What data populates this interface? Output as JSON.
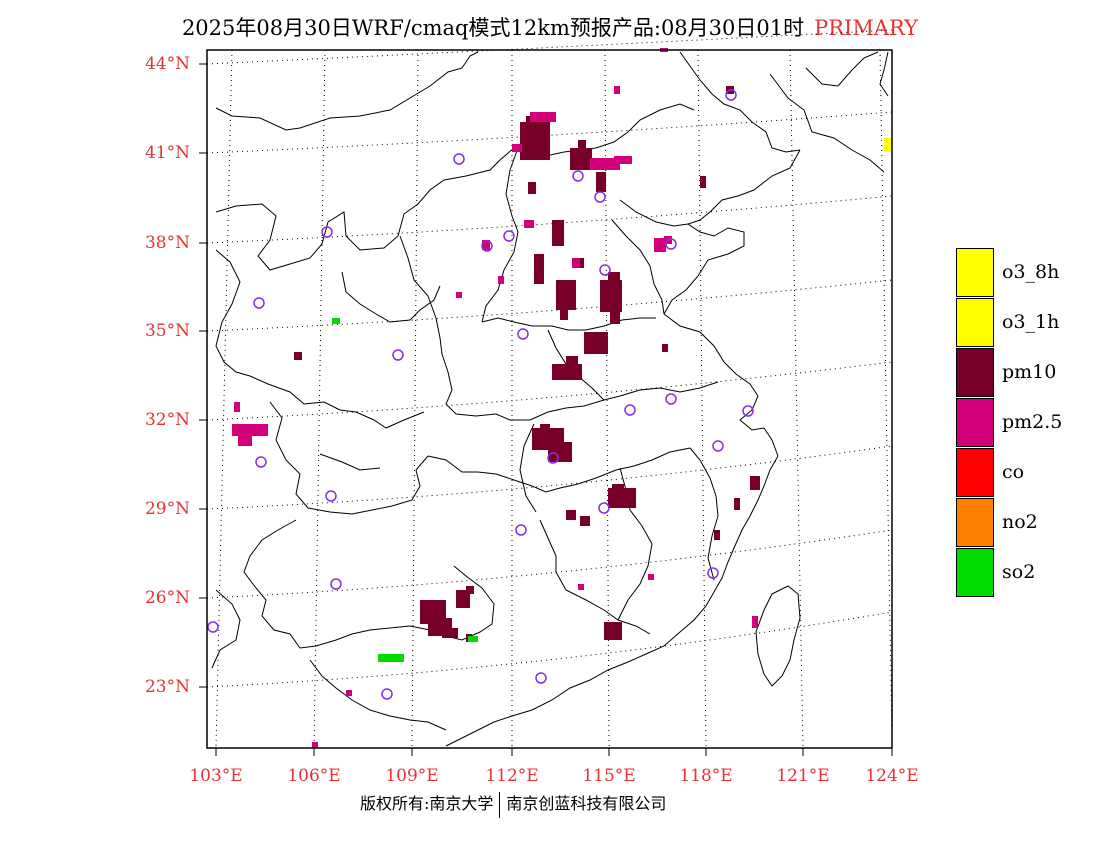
{
  "title": {
    "main": "2025年08月30日WRF/cmaq模式12km预报产品:08月30日01时",
    "tag": "PRIMARY"
  },
  "colors": {
    "frame": "#000000",
    "label": "#e63232",
    "pm10": "#780028",
    "pm25": "#d2007a",
    "so2": "#00dc00",
    "o3": "#ffff00",
    "station": "#8a2be2"
  },
  "lat_labels": [
    "44°N",
    "41°N",
    "38°N",
    "35°N",
    "32°N",
    "29°N",
    "26°N",
    "23°N"
  ],
  "lon_labels": [
    "103°E",
    "106°E",
    "109°E",
    "112°E",
    "115°E",
    "118°E",
    "121°E",
    "124°E"
  ],
  "legend": [
    {
      "label": "o3_8h",
      "color": "#ffff00"
    },
    {
      "label": "o3_1h",
      "color": "#ffff00"
    },
    {
      "label": "pm10",
      "color": "#780028"
    },
    {
      "label": "pm2.5",
      "color": "#d2007a"
    },
    {
      "label": "co",
      "color": "#ff0000"
    },
    {
      "label": "no2",
      "color": "#ff7f00"
    },
    {
      "label": "so2",
      "color": "#00dc00"
    }
  ],
  "footer": {
    "left": "版权所有:南京大学",
    "right": "南京创蓝科技有限公司"
  }
}
